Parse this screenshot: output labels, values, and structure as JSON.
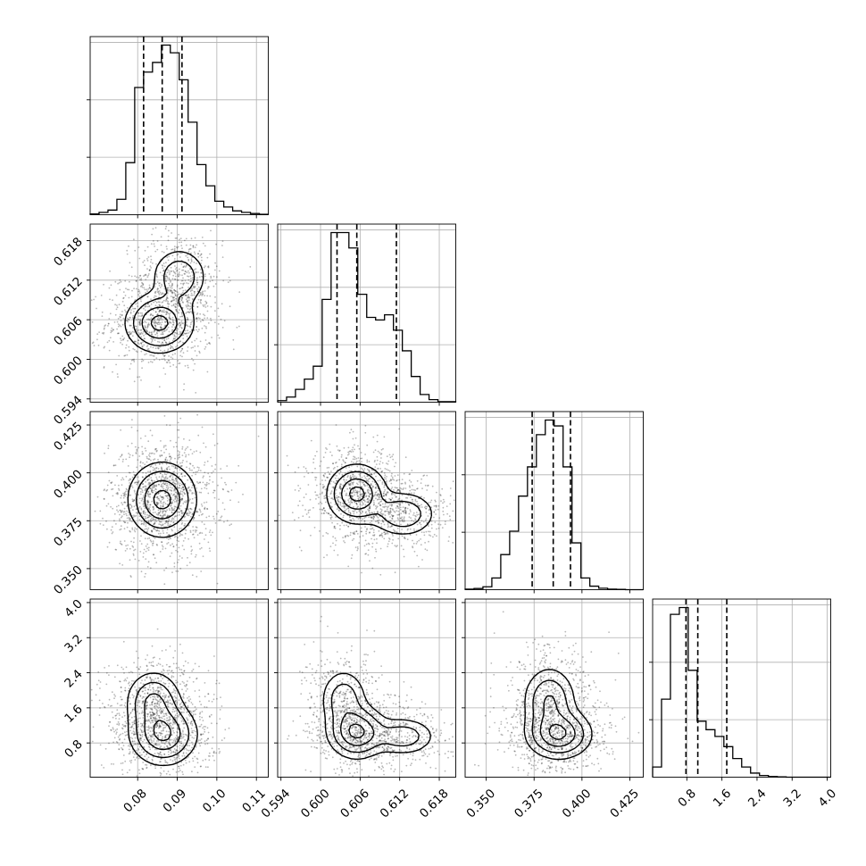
{
  "chart_data": {
    "type": "corner",
    "title": "",
    "parameters": [
      {
        "index": 0,
        "label": "",
        "range": [
          0.068,
          0.113
        ],
        "ticks": [
          "0.08",
          "0.09",
          "0.10",
          "0.11"
        ],
        "tick_values": [
          0.08,
          0.09,
          0.1,
          0.11
        ],
        "quantiles": [
          0.0815,
          0.0862,
          0.0912
        ]
      },
      {
        "index": 1,
        "label": "",
        "range": [
          0.5935,
          0.6205
        ],
        "ticks": [
          "0.594",
          "0.600",
          "0.606",
          "0.612",
          "0.618"
        ],
        "tick_values": [
          0.594,
          0.6,
          0.606,
          0.612,
          0.618
        ],
        "quantiles": [
          0.6025,
          0.6055,
          0.6115
        ]
      },
      {
        "index": 2,
        "label": "",
        "range": [
          0.339,
          0.432
        ],
        "ticks": [
          "0.350",
          "0.375",
          "0.400",
          "0.425"
        ],
        "tick_values": [
          0.35,
          0.375,
          0.4,
          0.425
        ],
        "quantiles": [
          0.374,
          0.385,
          0.394
        ]
      },
      {
        "index": 3,
        "label": "",
        "range": [
          0.02,
          4.08
        ],
        "ticks": [
          "0.8",
          "1.6",
          "2.4",
          "3.2",
          "4.0"
        ],
        "tick_values": [
          0.8,
          1.6,
          2.4,
          3.2,
          4.0
        ],
        "quantiles": [
          0.78,
          1.05,
          1.71
        ]
      }
    ],
    "histograms": [
      {
        "param": 0,
        "bin_edges_range": [
          0.068,
          0.113
        ],
        "counts": [
          2,
          6,
          12,
          40,
          135,
          330,
          370,
          395,
          440,
          420,
          350,
          240,
          130,
          75,
          35,
          20,
          10,
          6,
          3,
          1
        ]
      },
      {
        "param": 1,
        "bin_edges_range": [
          0.5935,
          0.6205
        ],
        "counts": [
          3,
          10,
          25,
          45,
          70,
          200,
          330,
          330,
          300,
          210,
          165,
          160,
          170,
          140,
          100,
          50,
          15,
          5,
          1,
          1
        ]
      },
      {
        "param": 2,
        "bin_edges_range": [
          0.339,
          0.432
        ],
        "counts": [
          2,
          4,
          10,
          40,
          120,
          200,
          320,
          420,
          530,
          580,
          560,
          420,
          160,
          40,
          12,
          5,
          2,
          1,
          0,
          0
        ]
      },
      {
        "param": 3,
        "bin_edges_range": [
          0.02,
          4.08
        ],
        "counts": [
          30,
          230,
          480,
          500,
          315,
          165,
          140,
          120,
          90,
          55,
          30,
          12,
          5,
          2,
          1,
          0,
          0,
          0,
          0,
          0
        ]
      }
    ],
    "pairs": [
      {
        "x": 0,
        "y": 1,
        "peaks": [
          {
            "x": 0.0855,
            "y": 0.6055,
            "sx": 0.0042,
            "sy": 0.0022,
            "w": 0.65
          },
          {
            "x": 0.0905,
            "y": 0.6125,
            "sx": 0.0035,
            "sy": 0.0022,
            "w": 0.35
          }
        ]
      },
      {
        "x": 0,
        "y": 2,
        "peaks": [
          {
            "x": 0.0862,
            "y": 0.386,
            "sx": 0.0042,
            "sy": 0.0095,
            "w": 1.0
          }
        ]
      },
      {
        "x": 1,
        "y": 2,
        "peaks": [
          {
            "x": 0.6055,
            "y": 0.389,
            "sx": 0.0022,
            "sy": 0.0075,
            "w": 0.65
          },
          {
            "x": 0.6125,
            "y": 0.3785,
            "sx": 0.0025,
            "sy": 0.006,
            "w": 0.35
          }
        ]
      },
      {
        "x": 0,
        "y": 3,
        "peaks": [
          {
            "x": 0.0865,
            "y": 1.0,
            "sx": 0.0042,
            "sy": 0.35,
            "w": 0.6
          },
          {
            "x": 0.084,
            "y": 1.75,
            "sx": 0.0035,
            "sy": 0.35,
            "w": 0.4
          }
        ]
      },
      {
        "x": 1,
        "y": 3,
        "peaks": [
          {
            "x": 0.6055,
            "y": 1.05,
            "sx": 0.0022,
            "sy": 0.3,
            "w": 0.5
          },
          {
            "x": 0.6035,
            "y": 1.8,
            "sx": 0.0018,
            "sy": 0.35,
            "w": 0.25
          },
          {
            "x": 0.6125,
            "y": 0.95,
            "sx": 0.0025,
            "sy": 0.22,
            "w": 0.25
          }
        ]
      },
      {
        "x": 2,
        "y": 3,
        "peaks": [
          {
            "x": 0.388,
            "y": 1.0,
            "sx": 0.0085,
            "sy": 0.28,
            "w": 0.6
          },
          {
            "x": 0.383,
            "y": 1.75,
            "sx": 0.007,
            "sy": 0.4,
            "w": 0.4
          }
        ]
      }
    ]
  }
}
